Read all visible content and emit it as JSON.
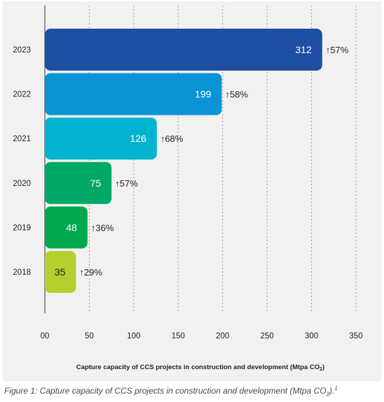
{
  "chart_data": {
    "type": "bar",
    "orientation": "horizontal",
    "categories": [
      "2023",
      "2022",
      "2021",
      "2020",
      "2019",
      "2018"
    ],
    "values": [
      312,
      199,
      126,
      75,
      48,
      35
    ],
    "growth_labels": [
      "57%",
      "58%",
      "68%",
      "57%",
      "36%",
      "29%"
    ],
    "growth_arrow": "↑",
    "xlabel": "Capture capacity of CCS projects in construction and development (Mtpa CO",
    "xlabel_sub": "2",
    "xlabel_end": ")",
    "xticks": [
      "00",
      "50",
      "100",
      "150",
      "200",
      "250",
      "300",
      "350"
    ],
    "xtick_values": [
      0,
      50,
      100,
      150,
      200,
      250,
      300,
      350
    ],
    "xlim": [
      0,
      350
    ],
    "grid": "vertical dashed",
    "colors": [
      "#1f4fa3",
      "#0a93d5",
      "#00b4cf",
      "#00a865",
      "#00a94f",
      "#b4cf2e"
    ],
    "value_label_colors": [
      "#ffffff",
      "#ffffff",
      "#ffffff",
      "#ffffff",
      "#ffffff",
      "#222222"
    ]
  },
  "caption": {
    "text": "Figure 1: Capture capacity of CCS projects in construction and development (Mtpa CO",
    "sub": "2",
    "end": ").",
    "sup": "1"
  }
}
